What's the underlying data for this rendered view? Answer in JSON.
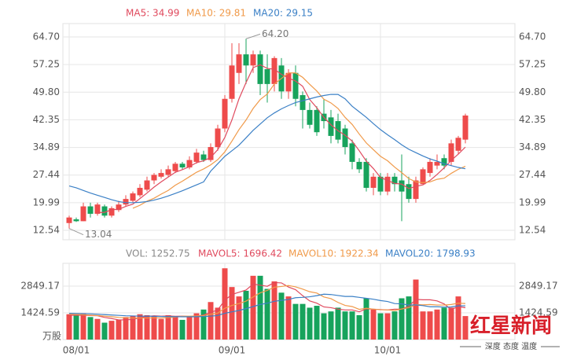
{
  "chart_data": [
    {
      "type": "candlestick",
      "up_color": "#ee4b4b",
      "down_color": "#17a35c",
      "categories": [
        "08/01",
        null,
        null,
        null,
        null,
        null,
        null,
        null,
        null,
        null,
        null,
        null,
        null,
        null,
        null,
        null,
        null,
        null,
        null,
        null,
        null,
        null,
        "09/01",
        null,
        null,
        null,
        null,
        null,
        null,
        null,
        null,
        null,
        null,
        null,
        null,
        null,
        null,
        null,
        null,
        null,
        null,
        null,
        null,
        null,
        "10/01",
        null,
        null,
        null,
        null,
        null,
        null,
        null,
        null,
        null,
        null,
        null,
        null
      ],
      "open": [
        14.5,
        15.5,
        15,
        19,
        17,
        19,
        16.5,
        18,
        19.5,
        20.5,
        22,
        23.5,
        26,
        27,
        27.5,
        28.5,
        30.5,
        29.5,
        31,
        33,
        31.5,
        35,
        40,
        48,
        55,
        60,
        57,
        60,
        56,
        52,
        57,
        50,
        55,
        49,
        45,
        45,
        44,
        43,
        42,
        40,
        36,
        31,
        31,
        24,
        27,
        23,
        27,
        26,
        25,
        21,
        25,
        28,
        30,
        32,
        31,
        34,
        37
      ],
      "close": [
        16,
        15,
        19,
        17,
        19.5,
        16.5,
        18.5,
        19.5,
        21,
        22.5,
        24,
        26,
        27.5,
        28,
        29,
        30.5,
        29.5,
        31.5,
        33.5,
        31.5,
        35,
        40,
        48,
        57,
        60,
        57,
        60,
        52,
        52,
        59,
        50,
        55,
        48,
        45,
        41,
        39,
        42,
        38,
        37,
        35,
        31,
        29,
        24,
        27,
        23,
        27,
        25,
        23,
        21,
        26,
        29,
        31,
        31,
        30,
        36,
        37.5,
        43.5
      ],
      "low": [
        13.04,
        14.8,
        15,
        16,
        16.5,
        16,
        16,
        17.5,
        19,
        20,
        21.5,
        23,
        25,
        26.5,
        27,
        28,
        29,
        29,
        30.5,
        31,
        31,
        34,
        39,
        47,
        52,
        52,
        55,
        49,
        47,
        50,
        48,
        48,
        46,
        40,
        40,
        38,
        40,
        36,
        36,
        33,
        29,
        28,
        23,
        22,
        22,
        22,
        23,
        15,
        20,
        20,
        25,
        27,
        29,
        29,
        30,
        33,
        36
      ],
      "high": [
        16.5,
        16,
        20,
        20,
        20,
        19.5,
        19,
        20.5,
        22,
        23,
        25,
        27,
        28,
        29,
        30,
        31,
        31,
        32.5,
        34.5,
        34,
        36,
        41,
        49,
        63,
        63,
        64.2,
        61,
        61,
        60,
        59.5,
        59,
        56,
        57,
        50,
        47,
        46,
        48,
        45,
        44,
        41,
        37,
        32,
        32,
        28,
        28,
        28,
        28,
        33,
        27,
        27,
        29.5,
        32,
        33,
        33,
        37,
        38,
        44
      ],
      "series": [
        {
          "name": "MA5: 34.99",
          "color": "#e04a5e",
          "values": [
            null,
            null,
            null,
            null,
            17.3,
            17.4,
            18.1,
            18.2,
            19.0,
            19.6,
            21.1,
            22.6,
            24.2,
            25.6,
            26.9,
            28.2,
            28.9,
            29.7,
            30.8,
            31.3,
            32.2,
            34.3,
            37.6,
            42.3,
            48.0,
            52.4,
            56.4,
            57.2,
            56.2,
            56.0,
            54.6,
            53.6,
            52.8,
            51.4,
            47.8,
            45.6,
            43.0,
            41.0,
            39.4,
            38.2,
            36.6,
            34.0,
            31.2,
            29.2,
            26.8,
            26.0,
            25.2,
            25.0,
            23.8,
            24.4,
            24.8,
            26.0,
            27.6,
            29.4,
            31.4,
            33.1,
            34.99
          ]
        },
        {
          "name": "MA10: 29.81",
          "color": "#f09a4a",
          "values": [
            null,
            null,
            null,
            null,
            null,
            null,
            null,
            null,
            null,
            18.5,
            19.3,
            20.4,
            21.2,
            22.3,
            23.3,
            24.7,
            25.8,
            27.0,
            28.2,
            29.1,
            30.2,
            31.6,
            33.7,
            36.6,
            39.7,
            42.3,
            45.4,
            47.8,
            49.3,
            52.0,
            53.5,
            55.0,
            55.0,
            53.8,
            51.9,
            50.1,
            47.9,
            46.9,
            45.4,
            43.0,
            41.1,
            38.5,
            36.1,
            34.3,
            32.5,
            31.3,
            29.6,
            28.1,
            26.5,
            25.6,
            25.4,
            25.6,
            26.3,
            26.6,
            27.9,
            29.0,
            29.81
          ]
        },
        {
          "name": "MA20: 29.15",
          "color": "#3b80c6",
          "values": [
            24.5,
            24,
            23.3,
            22.6,
            22,
            21.4,
            20.8,
            20.3,
            20,
            20,
            20.1,
            20.3,
            20.7,
            21.2,
            21.8,
            22.5,
            23.2,
            24,
            24.8,
            25.6,
            28.5,
            30.5,
            32.5,
            34,
            35.5,
            37.5,
            39.5,
            41.2,
            42.9,
            44.2,
            45.3,
            46.2,
            47,
            47.5,
            48,
            48.5,
            48.9,
            49.2,
            49.2,
            48,
            46,
            44.5,
            43,
            41.3,
            39.7,
            38.3,
            37,
            35.6,
            34.4,
            33.5,
            32.6,
            31.8,
            31.2,
            30.5,
            30,
            29.5,
            29.15
          ]
        }
      ],
      "annotations": [
        {
          "label": "64.20",
          "value": 64.2,
          "at": "high"
        },
        {
          "label": "13.04",
          "value": 13.04,
          "at": "low"
        }
      ],
      "ylim": [
        10,
        68.3
      ],
      "yticks": [
        12.54,
        19.99,
        27.44,
        34.89,
        42.35,
        {
          "value": 49.8,
          "label": "49.80"
        },
        57.25,
        {
          "value": 64.7,
          "label": "64.70"
        }
      ],
      "grid": true
    },
    {
      "type": "bar",
      "y_label": "万股",
      "series": [
        {
          "name": "VOL: 1252.75",
          "color": "#888888",
          "type": "bar",
          "values": [
            1350,
            1300,
            1400,
            1200,
            1100,
            900,
            1000,
            1050,
            1200,
            1250,
            1350,
            1300,
            1250,
            1100,
            1300,
            1250,
            1050,
            1200,
            1400,
            1600,
            2000,
            1700,
            3800,
            2800,
            2300,
            2600,
            3400,
            3400,
            2700,
            3100,
            2500,
            2300,
            1900,
            1900,
            1700,
            1800,
            1400,
            1500,
            1700,
            1500,
            1500,
            1300,
            2200,
            1600,
            1400,
            1400,
            1500,
            2200,
            2300,
            3200,
            1500,
            1500,
            1600,
            1700,
            1700,
            2300,
            1252.75
          ]
        },
        {
          "name": "MAVOL5: 1696.42",
          "color": "#e04a5e",
          "type": "line",
          "values": [
            1300,
            1300,
            1300,
            1280,
            1270,
            1180,
            1120,
            1050,
            1050,
            1080,
            1170,
            1230,
            1270,
            1250,
            1260,
            1240,
            1250,
            1230,
            1240,
            1310,
            1450,
            1580,
            2100,
            2400,
            2520,
            2640,
            2960,
            2900,
            2840,
            3040,
            3020,
            2800,
            2660,
            2340,
            2060,
            1940,
            1740,
            1700,
            1620,
            1580,
            1580,
            1480,
            1640,
            1620,
            1600,
            1580,
            1620,
            1620,
            1780,
            2140,
            2120,
            2120,
            2060,
            1900,
            1600,
            1760,
            1696.42
          ]
        },
        {
          "name": "MAVOL10: 1922.34",
          "color": "#f09a4a",
          "type": "line",
          "values": [
            1350,
            1340,
            1320,
            1300,
            1280,
            1250,
            1220,
            1180,
            1160,
            1150,
            1150,
            1150,
            1160,
            1150,
            1170,
            1200,
            1240,
            1250,
            1260,
            1280,
            1350,
            1410,
            1670,
            1820,
            1920,
            2050,
            2270,
            2490,
            2620,
            2790,
            2830,
            2880,
            2810,
            2690,
            2550,
            2480,
            2270,
            2180,
            1980,
            1820,
            1760,
            1610,
            1670,
            1620,
            1590,
            1580,
            1550,
            1630,
            1700,
            1870,
            1850,
            1870,
            1840,
            1840,
            1870,
            1940,
            1922.34
          ]
        },
        {
          "name": "MAVOL20: 1798.93",
          "color": "#3b80c6",
          "type": "line",
          "values": [
            1400,
            1390,
            1380,
            1370,
            1350,
            1330,
            1310,
            1290,
            1270,
            1260,
            1250,
            1245,
            1240,
            1230,
            1225,
            1220,
            1215,
            1215,
            1220,
            1230,
            1250,
            1280,
            1400,
            1480,
            1550,
            1650,
            1760,
            1870,
            1940,
            2040,
            2090,
            2140,
            2230,
            2250,
            2280,
            2340,
            2420,
            2400,
            2350,
            2300,
            2300,
            2250,
            2200,
            2150,
            2080,
            2030,
            1920,
            1900,
            1840,
            1850,
            1810,
            1750,
            1750,
            1730,
            1740,
            1800,
            1798.93
          ]
        }
      ],
      "ylim": [
        0,
        4064
      ],
      "yticks": [
        1424.59,
        2849.17
      ],
      "grid": true
    }
  ],
  "watermark": {
    "title": "红星新闻",
    "slogan": "深度 态度 温度"
  }
}
